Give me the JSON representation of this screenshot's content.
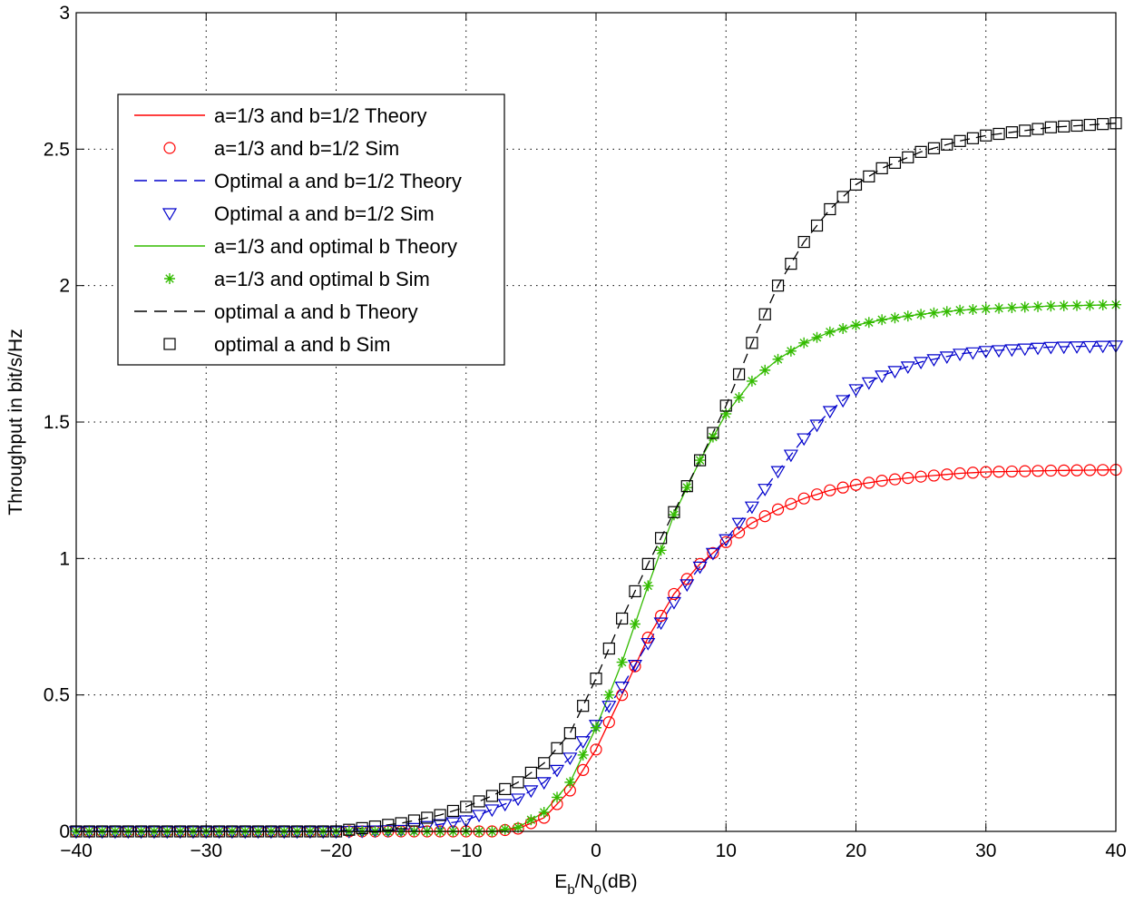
{
  "chart_data": {
    "type": "line",
    "title": "",
    "xlabel": {
      "main": "E",
      "sub1": "b",
      "mid": "/N",
      "sub2": "0",
      "tail": "(dB)"
    },
    "ylabel": "Throughput in bit/s/Hz",
    "xlim": [
      -40,
      40
    ],
    "ylim": [
      0,
      3
    ],
    "xticks": [
      -40,
      -30,
      -20,
      -10,
      0,
      10,
      20,
      30,
      40
    ],
    "yticks": [
      0,
      0.5,
      1,
      1.5,
      2,
      2.5,
      3
    ],
    "xtick_labels": [
      "−40",
      "−30",
      "−20",
      "−10",
      "0",
      "10",
      "20",
      "30",
      "40"
    ],
    "ytick_labels": [
      "0",
      "0.5",
      "1",
      "1.5",
      "2",
      "2.5",
      "3"
    ],
    "grid": true,
    "legend_position": "upper-left",
    "legend": [
      {
        "label": "a=1/3 and b=1/2 Theory",
        "kind": "line",
        "color": "#ff0000",
        "dash": "solid"
      },
      {
        "label": "a=1/3 and b=1/2 Sim",
        "kind": "marker",
        "color": "#ff0000",
        "marker": "circle"
      },
      {
        "label": "Optimal a and b=1/2 Theory",
        "kind": "line",
        "color": "#0000cc",
        "dash": "dashed"
      },
      {
        "label": "Optimal a and b=1/2 Sim",
        "kind": "marker",
        "color": "#0000cc",
        "marker": "triangle-down"
      },
      {
        "label": "a=1/3 and optimal b Theory",
        "kind": "line",
        "color": "#33bb00",
        "dash": "solid"
      },
      {
        "label": "a=1/3 and optimal b Sim",
        "kind": "marker",
        "color": "#33bb00",
        "marker": "asterisk"
      },
      {
        "label": "optimal a and b Theory",
        "kind": "line",
        "color": "#000000",
        "dash": "dashed"
      },
      {
        "label": "optimal a and b Sim",
        "kind": "marker",
        "color": "#000000",
        "marker": "square"
      }
    ],
    "series": [
      {
        "name": "a=1/3 and b=1/2",
        "color": "#ff0000",
        "marker": "circle",
        "line_dash": "solid",
        "x": [
          -40,
          -10,
          -8,
          -6,
          -4,
          -2,
          0,
          2,
          4,
          6,
          8,
          10,
          12,
          14,
          16,
          18,
          20,
          22,
          25,
          28,
          30,
          35,
          40
        ],
        "values": [
          0,
          0,
          0,
          0.01,
          0.05,
          0.15,
          0.3,
          0.5,
          0.71,
          0.87,
          0.98,
          1.06,
          1.13,
          1.18,
          1.22,
          1.25,
          1.27,
          1.285,
          1.3,
          1.312,
          1.317,
          1.322,
          1.325
        ]
      },
      {
        "name": "Optimal a and b=1/2",
        "color": "#0000cc",
        "marker": "triangle-down",
        "line_dash": "dashed",
        "x": [
          -40,
          -20,
          -15,
          -10,
          -8,
          -6,
          -4,
          -2,
          0,
          2,
          4,
          6,
          8,
          10,
          12,
          14,
          16,
          18,
          20,
          22,
          25,
          28,
          30,
          35,
          40
        ],
        "values": [
          0,
          0,
          0.005,
          0.04,
          0.08,
          0.12,
          0.18,
          0.27,
          0.39,
          0.53,
          0.69,
          0.84,
          0.97,
          1.07,
          1.19,
          1.32,
          1.44,
          1.54,
          1.62,
          1.67,
          1.72,
          1.75,
          1.76,
          1.775,
          1.78
        ]
      },
      {
        "name": "a=1/3 and optimal b",
        "color": "#33bb00",
        "marker": "asterisk",
        "line_dash": "solid",
        "x": [
          -40,
          -10,
          -8,
          -6,
          -4,
          -2,
          0,
          2,
          4,
          6,
          8,
          10,
          12,
          14,
          16,
          18,
          20,
          22,
          25,
          28,
          30,
          35,
          40
        ],
        "values": [
          0,
          0,
          0,
          0.015,
          0.07,
          0.18,
          0.38,
          0.62,
          0.9,
          1.16,
          1.36,
          1.53,
          1.65,
          1.73,
          1.79,
          1.83,
          1.855,
          1.875,
          1.895,
          1.91,
          1.915,
          1.925,
          1.93
        ]
      },
      {
        "name": "optimal a and b",
        "color": "#000000",
        "marker": "square",
        "line_dash": "dashed",
        "x": [
          -40,
          -20,
          -15,
          -12,
          -10,
          -8,
          -6,
          -4,
          -2,
          0,
          2,
          4,
          6,
          8,
          10,
          12,
          14,
          16,
          18,
          20,
          22,
          25,
          28,
          30,
          35,
          40
        ],
        "values": [
          0,
          0,
          0.03,
          0.06,
          0.09,
          0.13,
          0.18,
          0.25,
          0.36,
          0.56,
          0.78,
          0.98,
          1.17,
          1.36,
          1.56,
          1.79,
          2.0,
          2.16,
          2.28,
          2.37,
          2.43,
          2.49,
          2.53,
          2.55,
          2.58,
          2.595
        ]
      }
    ]
  }
}
